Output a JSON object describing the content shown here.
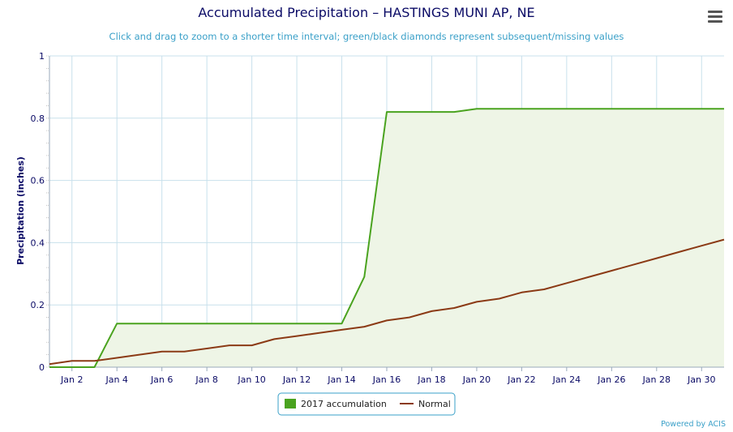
{
  "header": {
    "title": "Accumulated Precipitation – HASTINGS MUNI AP, NE",
    "subtitle": "Click and drag to zoom to a shorter time interval; green/black diamonds represent subsequent/missing values"
  },
  "menu": {
    "icon": "hamburger-menu-icon"
  },
  "credit": "Powered by ACIS",
  "chart_data": {
    "type": "line",
    "title": "Accumulated Precipitation – HASTINGS MUNI AP, NE",
    "xlabel": "",
    "ylabel": "Precipitation (inches)",
    "xlim": [
      1,
      31
    ],
    "ylim": [
      0,
      1
    ],
    "grid": true,
    "legend": "bottom-center",
    "x_tick_values": [
      2,
      4,
      6,
      8,
      10,
      12,
      14,
      16,
      18,
      20,
      22,
      24,
      26,
      28,
      30
    ],
    "x_tick_labels": [
      "Jan 2",
      "Jan 4",
      "Jan 6",
      "Jan 8",
      "Jan 10",
      "Jan 12",
      "Jan 14",
      "Jan 16",
      "Jan 18",
      "Jan 20",
      "Jan 22",
      "Jan 24",
      "Jan 26",
      "Jan 28",
      "Jan 30"
    ],
    "y_tick_values": [
      0,
      0.2,
      0.4,
      0.6,
      0.8,
      1
    ],
    "y_tick_labels": [
      "0",
      "0.2",
      "0.4",
      "0.6",
      "0.8",
      "1"
    ],
    "x": [
      1,
      2,
      3,
      4,
      5,
      6,
      7,
      8,
      9,
      10,
      11,
      12,
      13,
      14,
      15,
      16,
      17,
      18,
      19,
      20,
      21,
      22,
      23,
      24,
      25,
      26,
      27,
      28,
      29,
      30,
      31
    ],
    "series": [
      {
        "name": "2017 accumulation",
        "color": "#4aa31f",
        "fill": "#eef5e6",
        "area": true,
        "values": [
          0,
          0,
          0,
          0.14,
          0.14,
          0.14,
          0.14,
          0.14,
          0.14,
          0.14,
          0.14,
          0.14,
          0.14,
          0.14,
          0.29,
          0.82,
          0.82,
          0.82,
          0.82,
          0.83,
          0.83,
          0.83,
          0.83,
          0.83,
          0.83,
          0.83,
          0.83,
          0.83,
          0.83,
          0.83,
          0.83
        ]
      },
      {
        "name": "Normal",
        "color": "#8b3a15",
        "area": false,
        "values": [
          0.01,
          0.02,
          0.02,
          0.03,
          0.04,
          0.05,
          0.05,
          0.06,
          0.07,
          0.07,
          0.09,
          0.1,
          0.11,
          0.12,
          0.13,
          0.15,
          0.16,
          0.18,
          0.19,
          0.21,
          0.22,
          0.24,
          0.25,
          0.27,
          0.29,
          0.31,
          0.33,
          0.35,
          0.37,
          0.39,
          0.41
        ]
      }
    ]
  }
}
